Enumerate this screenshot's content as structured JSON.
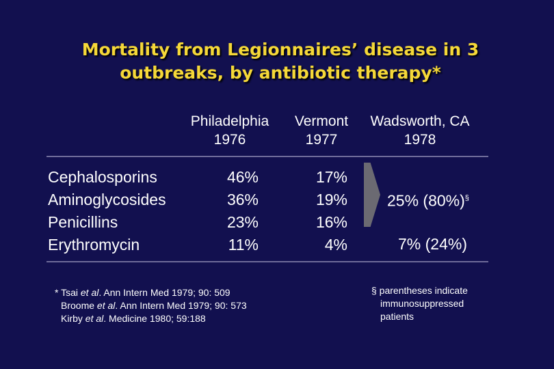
{
  "title": {
    "line1": "Mortality from Legionnaires’ disease in 3",
    "line2": "outbreaks, by antibiotic therapy*"
  },
  "columns": [
    {
      "place": "Philadelphia",
      "year": "1976"
    },
    {
      "place": "Vermont",
      "year": "1977"
    },
    {
      "place": "Wadsworth, CA",
      "year": "1978"
    }
  ],
  "drugs": [
    "Cephalosporins",
    "Aminoglycosides",
    "Penicillins",
    "Erythromycin"
  ],
  "philadelphia": [
    "46%",
    "36%",
    "23%",
    "11%"
  ],
  "vermont": [
    "17%",
    "19%",
    "16%",
    "4%"
  ],
  "wadsworth": {
    "grouped_value": "25% (80%)",
    "grouped_mark": "§",
    "erythromycin_value": "7% (24%)"
  },
  "references": {
    "ref1_prefix": "* Tsai ",
    "ref1_etal": "et al",
    "ref1_rest": ". Ann Intern Med 1979; 90: 509",
    "ref2_prefix": "Broome ",
    "ref2_etal": "et al",
    "ref2_rest": ". Ann Intern Med 1979; 90: 573",
    "ref3_prefix": "Kirby ",
    "ref3_etal": "et al",
    "ref3_rest": ". Medicine 1980; 59:188"
  },
  "note": {
    "line1": "§ parentheses indicate",
    "line2": "immunosuppressed",
    "line3": "patients"
  },
  "colors": {
    "background": "#12104f",
    "title": "#f5d838",
    "text": "#ffffff",
    "rule": "#6f6c9a",
    "chevron": "#6b6a72"
  }
}
